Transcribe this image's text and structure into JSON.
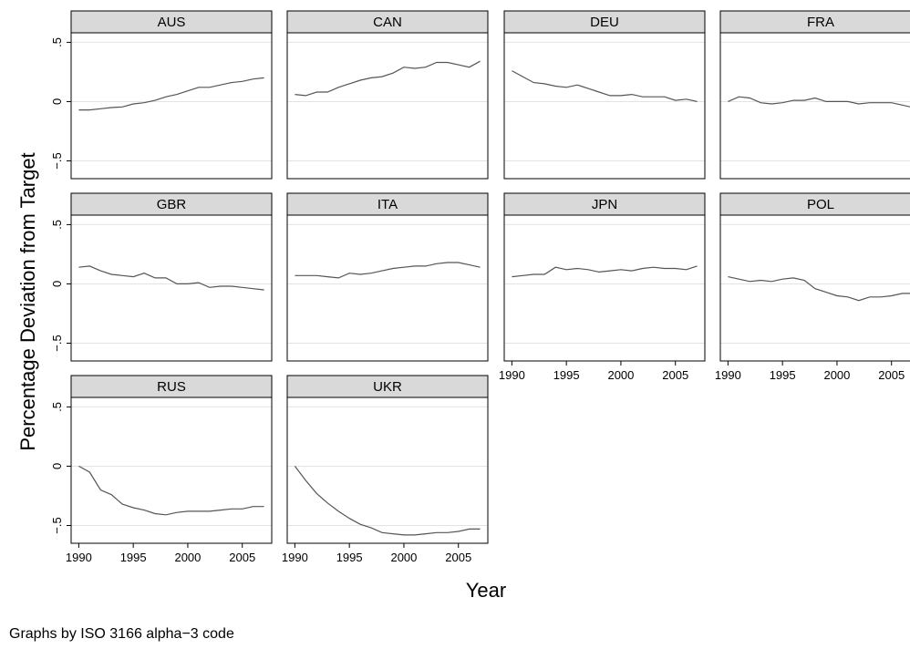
{
  "chart_data": {
    "type": "line",
    "panel_layout": "small multiples, 4 columns",
    "ylabel": "Percentage Deviation from Target",
    "xlabel": "Year",
    "note": "Graphs by ISO 3166 alpha−3 code",
    "ylim": [
      -0.65,
      0.58
    ],
    "xlim": [
      1989.3,
      2007.7
    ],
    "y_ticks": [
      0.5,
      0,
      -0.5
    ],
    "y_tick_labels": [
      ".5",
      "0",
      "−.5"
    ],
    "x_ticks": [
      1990,
      1995,
      2000,
      2005
    ],
    "x_tick_labels": [
      "1990",
      "1995",
      "2000",
      "2005"
    ],
    "grid": true,
    "line_color": "#555555",
    "header_color": "#d9d9d9",
    "x": [
      1990,
      1991,
      1992,
      1993,
      1994,
      1995,
      1996,
      1997,
      1998,
      1999,
      2000,
      2001,
      2002,
      2003,
      2004,
      2005,
      2006,
      2007
    ],
    "panels": [
      {
        "title": "AUS",
        "values": [
          -0.07,
          -0.07,
          -0.06,
          -0.05,
          -0.045,
          -0.02,
          -0.01,
          0.01,
          0.04,
          0.06,
          0.09,
          0.12,
          0.12,
          0.14,
          0.16,
          0.17,
          0.19,
          0.2
        ]
      },
      {
        "title": "CAN",
        "values": [
          0.06,
          0.05,
          0.08,
          0.08,
          0.12,
          0.15,
          0.18,
          0.2,
          0.21,
          0.24,
          0.29,
          0.28,
          0.29,
          0.33,
          0.33,
          0.31,
          0.29,
          0.34
        ]
      },
      {
        "title": "DEU",
        "values": [
          0.26,
          0.21,
          0.16,
          0.15,
          0.13,
          0.12,
          0.14,
          0.11,
          0.08,
          0.05,
          0.05,
          0.06,
          0.04,
          0.04,
          0.04,
          0.01,
          0.02,
          0.0
        ]
      },
      {
        "title": "FRA",
        "values": [
          0.0,
          0.04,
          0.03,
          -0.01,
          -0.02,
          -0.01,
          0.01,
          0.01,
          0.03,
          0.0,
          0.0,
          0.0,
          -0.02,
          -0.01,
          -0.01,
          -0.01,
          -0.03,
          -0.05
        ]
      },
      {
        "title": "GBR",
        "values": [
          0.14,
          0.15,
          0.11,
          0.08,
          0.07,
          0.06,
          0.09,
          0.05,
          0.05,
          0.0,
          0.0,
          0.01,
          -0.03,
          -0.02,
          -0.02,
          -0.03,
          -0.04,
          -0.05
        ]
      },
      {
        "title": "ITA",
        "values": [
          0.07,
          0.07,
          0.07,
          0.06,
          0.05,
          0.09,
          0.08,
          0.09,
          0.11,
          0.13,
          0.14,
          0.15,
          0.15,
          0.17,
          0.18,
          0.18,
          0.16,
          0.14
        ]
      },
      {
        "title": "JPN",
        "values": [
          0.06,
          0.07,
          0.08,
          0.08,
          0.14,
          0.12,
          0.13,
          0.12,
          0.1,
          0.11,
          0.12,
          0.11,
          0.13,
          0.14,
          0.13,
          0.13,
          0.12,
          0.15
        ]
      },
      {
        "title": "POL",
        "values": [
          0.06,
          0.04,
          0.02,
          0.03,
          0.02,
          0.04,
          0.05,
          0.03,
          -0.04,
          -0.07,
          -0.1,
          -0.11,
          -0.14,
          -0.11,
          -0.11,
          -0.1,
          -0.08,
          -0.08
        ]
      },
      {
        "title": "RUS",
        "values": [
          0.0,
          -0.05,
          -0.2,
          -0.24,
          -0.32,
          -0.35,
          -0.37,
          -0.4,
          -0.41,
          -0.39,
          -0.38,
          -0.38,
          -0.38,
          -0.37,
          -0.36,
          -0.36,
          -0.34,
          -0.34
        ]
      },
      {
        "title": "UKR",
        "values": [
          0.0,
          -0.12,
          -0.23,
          -0.31,
          -0.38,
          -0.44,
          -0.49,
          -0.52,
          -0.56,
          -0.57,
          -0.58,
          -0.58,
          -0.57,
          -0.56,
          -0.56,
          -0.55,
          -0.53,
          -0.53
        ]
      }
    ]
  }
}
